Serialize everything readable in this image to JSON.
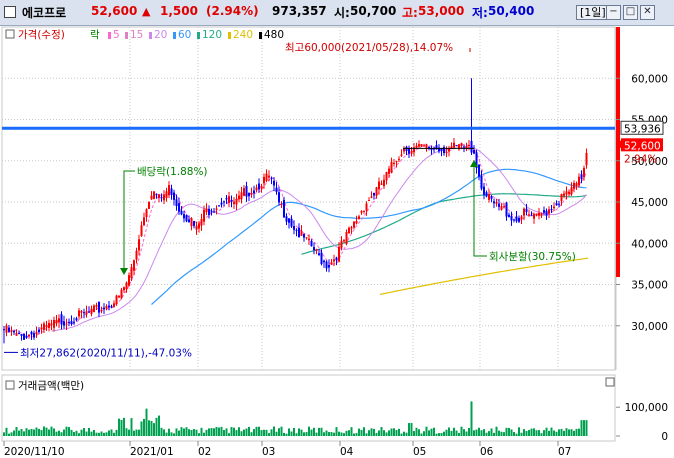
{
  "header": {
    "name": "에코프로",
    "price": "52,600",
    "change_arrow": "▲",
    "change": "1,500",
    "change_pct": "(2.94%)",
    "volume": "973,357",
    "open_label": "시:",
    "open": "50,700",
    "high_label": "고:",
    "high": "53,000",
    "low_label": "저:",
    "low": "50,400",
    "period": "[1일]"
  },
  "legend": {
    "price_label": "가격(수정)",
    "drop_label": "락",
    "ma": [
      {
        "label": "5",
        "color": "#ff66cc"
      },
      {
        "label": "15",
        "color": "#e080c0"
      },
      {
        "label": "20",
        "color": "#cc88ee"
      },
      {
        "label": "60",
        "color": "#3399ff"
      },
      {
        "label": "120",
        "color": "#22aa88"
      },
      {
        "label": "240",
        "color": "#e0c000"
      },
      {
        "label": "480",
        "color": "#000000"
      }
    ]
  },
  "price_axis": {
    "min": 25000,
    "max": 65000,
    "ticks": [
      "60,000",
      "55,000",
      "50,000",
      "45,000",
      "40,000",
      "35,000",
      "30,000"
    ],
    "tick_values": [
      60000,
      55000,
      50000,
      45000,
      40000,
      35000,
      30000
    ],
    "marker_value": "53,936",
    "current_value": "52,600",
    "current_pct": "2.94%"
  },
  "annotations": {
    "high": "최고60,000(2021/05/28),14.07%",
    "low": "최저27,862(2020/11/11),-47.03%",
    "dividend": "배당락(1.88%)",
    "split": "회사분할(30.75%)"
  },
  "volume_panel": {
    "title": "거래금액(백만)",
    "ticks": [
      "100,000",
      "0"
    ],
    "tick_values": [
      100000,
      0
    ]
  },
  "time_axis": {
    "labels": [
      "2020/11/10",
      "2021/01",
      "02",
      "03",
      "04",
      "05",
      "06",
      "07"
    ]
  },
  "colors": {
    "up": "#ff0000",
    "down": "#0000ff",
    "volume": "#00a050",
    "horizontal_line": "#1a6cff",
    "title_bg": "#d9e2ee"
  }
}
